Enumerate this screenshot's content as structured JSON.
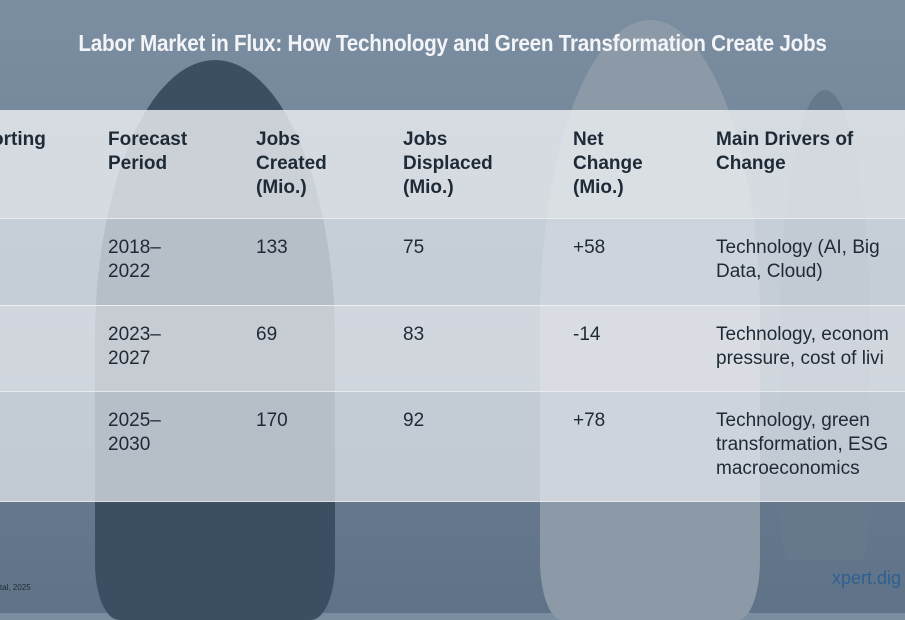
{
  "title": "Labor Market in Flux: How Technology and Green Transformation Create Jobs",
  "table": {
    "headers": [
      "orting",
      "Forecast\nPeriod",
      "Jobs\nCreated\n(Mio.)",
      "Jobs\nDisplaced\n(Mio.)",
      "Net\nChange\n(Mio.)",
      "Main Drivers of\nChange"
    ],
    "rows": [
      [
        "",
        "2018–\n2022",
        "133",
        "75",
        "+58",
        "Technology (AI, Big\nData, Cloud)"
      ],
      [
        "",
        "2023–\n2027",
        "69",
        "83",
        "-14",
        "Technology, econom\npressure, cost of livi"
      ],
      [
        "",
        "2025–\n2030",
        "170",
        "92",
        "+78",
        "Technology, green\ntransformation, ESG\nmacroeconomics"
      ]
    ]
  },
  "source": "tal, 2025",
  "brand": "xpert.dig"
}
